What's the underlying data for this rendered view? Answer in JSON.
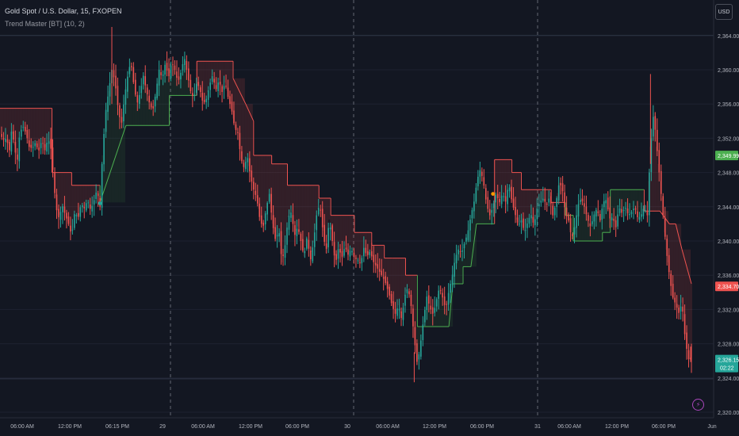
{
  "header": {
    "symbol_line": "Gold Spot / U.S. Dollar, 15, FXOPEN",
    "indicator_line": "Trend Master [BT] (10, 2)"
  },
  "currency_button": "USD",
  "alert_icon": "lightning-icon",
  "colors": {
    "background": "#131722",
    "up": "#26a69a",
    "down": "#ef5350",
    "grid": "#1e2230",
    "axis_text": "#b2b5be",
    "session_line": "#787b86",
    "trend_up": "#4caf50",
    "trend_down": "#ef5350"
  },
  "chart_data": {
    "type": "candlestick",
    "title": "Gold Spot / U.S. Dollar, 15, FXOPEN",
    "y_axis": {
      "ticks": [
        "2,364.00",
        "2,360.00",
        "2,356.00",
        "2,352.00",
        "2,348.00",
        "2,344.00",
        "2,340.00",
        "2,336.00",
        "2,332.00",
        "2,328.00",
        "2,324.00",
        "2,320.00"
      ],
      "ylim": [
        2319.0,
        2367.0
      ],
      "position": "right"
    },
    "x_axis": {
      "ticks": [
        "06:00 AM",
        "12:00 PM",
        "06:15 PM",
        "29",
        "06:00 AM",
        "12:00 PM",
        "06:00 PM",
        "30",
        "06:00 AM",
        "12:00 PM",
        "06:00 PM",
        "31",
        "06:00 AM",
        "12:00 PM",
        "06:00 PM",
        "Jun"
      ]
    },
    "session_separators": [
      "29",
      "30",
      "31"
    ],
    "horizontal_levels": [
      2364.0,
      2323.9
    ],
    "price_labels": [
      {
        "text": "2,349.99",
        "value": 2349.99,
        "color": "#4caf50"
      },
      {
        "text": "2,334.70",
        "value": 2334.7,
        "color": "#ef5350"
      },
      {
        "text": "2,326.15",
        "value": 2326.15,
        "color": "#26a69a",
        "subtext": "02:22"
      }
    ],
    "close_path": [
      [
        0,
        2352.5
      ],
      [
        4,
        2351.8
      ],
      [
        8,
        2352.0
      ],
      [
        12,
        2350.6
      ],
      [
        15,
        2353.2
      ],
      [
        19,
        2350.5
      ],
      [
        22,
        2349.5
      ],
      [
        25,
        2352.6
      ],
      [
        29,
        2353.4
      ],
      [
        33,
        2352.6
      ],
      [
        37,
        2351.0
      ],
      [
        41,
        2350.8
      ],
      [
        45,
        2351.5
      ],
      [
        49,
        2350.4
      ],
      [
        53,
        2351.8
      ],
      [
        57,
        2350.6
      ],
      [
        61,
        2352.0
      ],
      [
        65,
        2350.6
      ],
      [
        69,
        2346.0
      ],
      [
        72,
        2343.6
      ],
      [
        75,
        2342.6
      ],
      [
        79,
        2344.2
      ],
      [
        83,
        2343.0
      ],
      [
        87,
        2342.0
      ],
      [
        91,
        2340.6
      ],
      [
        95,
        2343.5
      ],
      [
        99,
        2342.6
      ],
      [
        103,
        2344.4
      ],
      [
        107,
        2343.8
      ],
      [
        111,
        2344.8
      ],
      [
        115,
        2343.6
      ],
      [
        119,
        2344.6
      ],
      [
        123,
        2346.0
      ],
      [
        127,
        2344.0
      ],
      [
        130,
        2350.0
      ],
      [
        134,
        2355.0
      ],
      [
        138,
        2357.5
      ],
      [
        142,
        2360.0
      ],
      [
        146,
        2358.6
      ],
      [
        150,
        2355.5
      ],
      [
        154,
        2353.4
      ],
      [
        158,
        2356.8
      ],
      [
        162,
        2359.2
      ],
      [
        166,
        2361.0
      ],
      [
        170,
        2358.2
      ],
      [
        174,
        2356.0
      ],
      [
        178,
        2357.4
      ],
      [
        182,
        2359.3
      ],
      [
        186,
        2357.5
      ],
      [
        190,
        2356.0
      ],
      [
        194,
        2355.2
      ],
      [
        198,
        2357.4
      ],
      [
        202,
        2360.0
      ],
      [
        206,
        2359.0
      ],
      [
        210,
        2360.8
      ],
      [
        214,
        2359.0
      ],
      [
        218,
        2361.0
      ],
      [
        222,
        2360.0
      ],
      [
        226,
        2358.5
      ],
      [
        230,
        2359.8
      ],
      [
        234,
        2361.5
      ],
      [
        238,
        2359.5
      ],
      [
        242,
        2357.5
      ],
      [
        246,
        2356.6
      ],
      [
        250,
        2358.6
      ],
      [
        254,
        2357.6
      ],
      [
        258,
        2356.0
      ],
      [
        262,
        2356.6
      ],
      [
        266,
        2358.2
      ],
      [
        270,
        2359.4
      ],
      [
        274,
        2357.6
      ],
      [
        278,
        2358.8
      ],
      [
        282,
        2357.4
      ],
      [
        286,
        2358.5
      ],
      [
        290,
        2356.6
      ],
      [
        294,
        2355.4
      ],
      [
        298,
        2353.2
      ],
      [
        302,
        2352.6
      ],
      [
        306,
        2349.6
      ],
      [
        310,
        2348.5
      ],
      [
        314,
        2350.0
      ],
      [
        318,
        2347.5
      ],
      [
        322,
        2346.0
      ],
      [
        326,
        2345.0
      ],
      [
        330,
        2342.5
      ],
      [
        334,
        2341.5
      ],
      [
        338,
        2343.8
      ],
      [
        342,
        2345.5
      ],
      [
        346,
        2342.0
      ],
      [
        350,
        2340.0
      ],
      [
        354,
        2341.4
      ],
      [
        358,
        2337.5
      ],
      [
        362,
        2339.5
      ],
      [
        366,
        2342.8
      ],
      [
        370,
        2343.4
      ],
      [
        374,
        2340.6
      ],
      [
        378,
        2341.7
      ],
      [
        382,
        2340.0
      ],
      [
        386,
        2338.2
      ],
      [
        390,
        2340.6
      ],
      [
        394,
        2337.6
      ],
      [
        398,
        2339.8
      ],
      [
        402,
        2343.0
      ],
      [
        406,
        2344.4
      ],
      [
        410,
        2341.2
      ],
      [
        414,
        2338.6
      ],
      [
        418,
        2342.5
      ],
      [
        422,
        2340.0
      ],
      [
        426,
        2337.3
      ],
      [
        430,
        2339.3
      ],
      [
        434,
        2338.0
      ],
      [
        438,
        2339.4
      ],
      [
        442,
        2338.4
      ],
      [
        446,
        2339.1
      ],
      [
        450,
        2338.0
      ],
      [
        454,
        2337.8
      ],
      [
        458,
        2337.3
      ],
      [
        462,
        2339.2
      ],
      [
        466,
        2338.2
      ],
      [
        470,
        2338.8
      ],
      [
        474,
        2337.6
      ],
      [
        478,
        2337.0
      ],
      [
        482,
        2336.4
      ],
      [
        486,
        2335.8
      ],
      [
        490,
        2335.0
      ],
      [
        494,
        2333.8
      ],
      [
        498,
        2332.4
      ],
      [
        502,
        2331.5
      ],
      [
        506,
        2332.5
      ],
      [
        510,
        2330.8
      ],
      [
        514,
        2333.6
      ],
      [
        518,
        2334.6
      ],
      [
        522,
        2332.4
      ],
      [
        526,
        2328.6
      ],
      [
        530,
        2325.5
      ],
      [
        534,
        2328.0
      ],
      [
        538,
        2331.0
      ],
      [
        542,
        2333.5
      ],
      [
        546,
        2332.2
      ],
      [
        550,
        2331.4
      ],
      [
        554,
        2333.0
      ],
      [
        558,
        2334.6
      ],
      [
        562,
        2333.4
      ],
      [
        566,
        2332.0
      ],
      [
        570,
        2334.2
      ],
      [
        574,
        2335.8
      ],
      [
        578,
        2338.0
      ],
      [
        582,
        2339.0
      ],
      [
        586,
        2338.6
      ],
      [
        590,
        2339.8
      ],
      [
        594,
        2341.0
      ],
      [
        598,
        2343.0
      ],
      [
        602,
        2344.6
      ],
      [
        606,
        2347.2
      ],
      [
        610,
        2348.4
      ],
      [
        614,
        2346.8
      ],
      [
        618,
        2344.2
      ],
      [
        622,
        2343.0
      ],
      [
        626,
        2344.0
      ],
      [
        630,
        2345.6
      ],
      [
        634,
        2344.4
      ],
      [
        638,
        2345.6
      ],
      [
        642,
        2344.6
      ],
      [
        646,
        2346.8
      ],
      [
        650,
        2344.6
      ],
      [
        654,
        2343.2
      ],
      [
        658,
        2341.8
      ],
      [
        662,
        2342.4
      ],
      [
        666,
        2341.0
      ],
      [
        670,
        2342.2
      ],
      [
        674,
        2343.2
      ],
      [
        678,
        2341.8
      ],
      [
        682,
        2343.8
      ],
      [
        686,
        2344.6
      ],
      [
        690,
        2345.0
      ],
      [
        694,
        2344.2
      ],
      [
        698,
        2345.2
      ],
      [
        702,
        2343.0
      ],
      [
        706,
        2344.4
      ],
      [
        710,
        2346.8
      ],
      [
        714,
        2346.2
      ],
      [
        718,
        2343.2
      ],
      [
        722,
        2342.4
      ],
      [
        726,
        2340.2
      ],
      [
        730,
        2341.8
      ],
      [
        734,
        2344.2
      ],
      [
        738,
        2345.0
      ],
      [
        742,
        2344.0
      ],
      [
        746,
        2342.6
      ],
      [
        750,
        2341.6
      ],
      [
        754,
        2343.0
      ],
      [
        758,
        2343.8
      ],
      [
        762,
        2342.4
      ],
      [
        766,
        2344.6
      ],
      [
        770,
        2344.8
      ],
      [
        774,
        2342.6
      ],
      [
        778,
        2342.8
      ],
      [
        782,
        2341.6
      ],
      [
        786,
        2344.0
      ],
      [
        790,
        2343.2
      ],
      [
        794,
        2344.0
      ],
      [
        798,
        2343.0
      ],
      [
        802,
        2343.4
      ],
      [
        806,
        2344.0
      ],
      [
        810,
        2342.6
      ],
      [
        814,
        2343.0
      ],
      [
        818,
        2344.0
      ],
      [
        822,
        2343.0
      ],
      [
        826,
        2351.0
      ],
      [
        830,
        2355.0
      ],
      [
        834,
        2351.0
      ],
      [
        838,
        2347.0
      ],
      [
        842,
        2343.0
      ],
      [
        846,
        2339.0
      ],
      [
        850,
        2336.0
      ],
      [
        854,
        2333.5
      ],
      [
        858,
        2332.6
      ],
      [
        862,
        2331.6
      ],
      [
        866,
        2332.8
      ],
      [
        870,
        2328.6
      ],
      [
        874,
        2326.2
      ],
      [
        878,
        2326.15
      ]
    ],
    "trend_band": [
      [
        0,
        2355.5
      ],
      [
        66,
        2355.5
      ],
      [
        66,
        2348.0
      ],
      [
        91,
        2348.0
      ],
      [
        91,
        2346.5
      ],
      [
        127,
        2346.5
      ],
      [
        127,
        2344.5
      ],
      [
        160,
        2353.5
      ],
      [
        215,
        2353.5
      ],
      [
        215,
        2357.0
      ],
      [
        250,
        2357.0
      ],
      [
        250,
        2361.0
      ],
      [
        296,
        2361.0
      ],
      [
        296,
        2359.0
      ],
      [
        312,
        2356.0
      ],
      [
        322,
        2354.0
      ],
      [
        322,
        2350.0
      ],
      [
        345,
        2350.0
      ],
      [
        345,
        2349.0
      ],
      [
        365,
        2349.0
      ],
      [
        365,
        2346.5
      ],
      [
        405,
        2346.5
      ],
      [
        405,
        2345.0
      ],
      [
        420,
        2345.0
      ],
      [
        420,
        2343.0
      ],
      [
        450,
        2343.0
      ],
      [
        450,
        2341.0
      ],
      [
        472,
        2341.0
      ],
      [
        472,
        2339.5
      ],
      [
        488,
        2339.5
      ],
      [
        488,
        2338.0
      ],
      [
        498,
        2338.0
      ],
      [
        515,
        2338.0
      ],
      [
        515,
        2336.0
      ],
      [
        530,
        2336.0
      ],
      [
        530,
        2330.0
      ],
      [
        570,
        2330.0
      ],
      [
        575,
        2335.0
      ],
      [
        588,
        2335.0
      ],
      [
        588,
        2337.0
      ],
      [
        598,
        2337.0
      ],
      [
        605,
        2342.0
      ],
      [
        628,
        2342.0
      ],
      [
        628,
        2349.5
      ],
      [
        650,
        2349.5
      ],
      [
        650,
        2348.0
      ],
      [
        662,
        2348.0
      ],
      [
        662,
        2346.0
      ],
      [
        700,
        2346.0
      ],
      [
        700,
        2344.5
      ],
      [
        718,
        2344.5
      ],
      [
        718,
        2343.0
      ],
      [
        728,
        2343.0
      ],
      [
        728,
        2340.0
      ],
      [
        765,
        2340.0
      ],
      [
        765,
        2341.0
      ],
      [
        775,
        2341.0
      ],
      [
        775,
        2346.0
      ],
      [
        818,
        2346.0
      ],
      [
        818,
        2343.5
      ],
      [
        838,
        2343.5
      ],
      [
        850,
        2342.0
      ],
      [
        858,
        2342.0
      ],
      [
        866,
        2339.0
      ],
      [
        878,
        2335.0
      ]
    ],
    "up_segments": [
      [
        127,
        160
      ],
      [
        160,
        215
      ],
      [
        215,
        250
      ],
      [
        530,
        628
      ],
      [
        718,
        818
      ]
    ],
    "markers": [
      {
        "x": 127,
        "value": 2344.4,
        "color": "#26a69a"
      },
      {
        "x": 626,
        "value": 2345.5,
        "color": "#ff9800"
      }
    ]
  }
}
